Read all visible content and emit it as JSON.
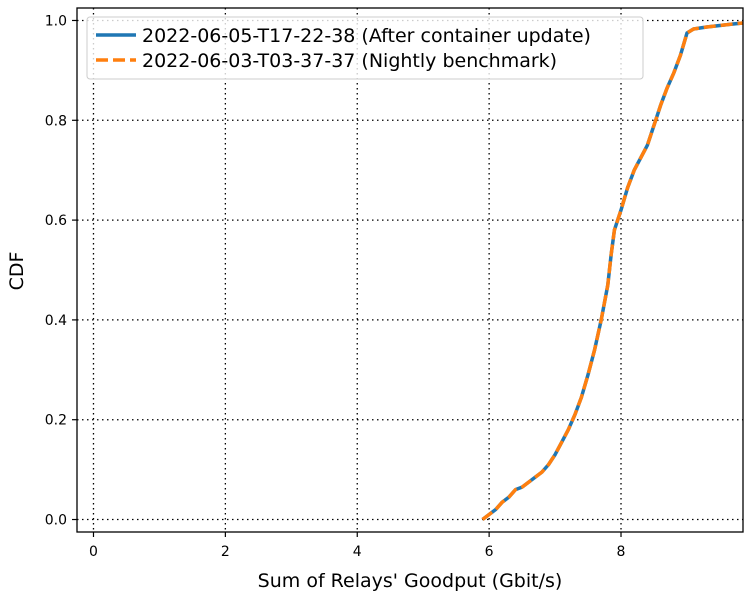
{
  "chart_data": {
    "type": "line",
    "title": "",
    "xlabel": "Sum of Relays' Goodput (Gbit/s)",
    "ylabel": "CDF",
    "xlim": [
      -0.25,
      9.85
    ],
    "ylim": [
      -0.025,
      1.025
    ],
    "xticks": [
      0,
      2,
      4,
      6,
      8
    ],
    "xtick_labels": [
      "0",
      "2",
      "4",
      "6",
      "8"
    ],
    "yticks": [
      0.0,
      0.2,
      0.4,
      0.6,
      0.8,
      1.0
    ],
    "ytick_labels": [
      "0.0",
      "0.2",
      "0.4",
      "0.6",
      "0.8",
      "1.0"
    ],
    "grid": true,
    "grid_style": "dotted",
    "legend_position": "top-left",
    "series": [
      {
        "name": "2022-06-05-T17-22-38 (After container update)",
        "color": "#1f77b4",
        "linestyle": "solid",
        "x": [
          5.9,
          6.0,
          6.1,
          6.2,
          6.3,
          6.4,
          6.5,
          6.6,
          6.7,
          6.8,
          6.9,
          7.0,
          7.1,
          7.2,
          7.3,
          7.4,
          7.5,
          7.6,
          7.7,
          7.8,
          7.85,
          7.9,
          7.95,
          8.0,
          8.1,
          8.2,
          8.3,
          8.4,
          8.5,
          8.6,
          8.7,
          8.8,
          8.9,
          9.0,
          9.1,
          9.3,
          9.5,
          9.7,
          9.85
        ],
        "y": [
          0.0,
          0.01,
          0.02,
          0.035,
          0.045,
          0.06,
          0.065,
          0.075,
          0.085,
          0.095,
          0.11,
          0.13,
          0.155,
          0.18,
          0.21,
          0.245,
          0.29,
          0.34,
          0.4,
          0.47,
          0.53,
          0.58,
          0.6,
          0.62,
          0.665,
          0.7,
          0.725,
          0.75,
          0.79,
          0.83,
          0.865,
          0.895,
          0.93,
          0.975,
          0.983,
          0.987,
          0.99,
          0.993,
          0.995
        ]
      },
      {
        "name": "2022-06-03-T03-37-37 (Nightly benchmark)",
        "color": "#ff7f0e",
        "linestyle": "dashed",
        "x": [
          5.9,
          6.0,
          6.1,
          6.2,
          6.3,
          6.4,
          6.5,
          6.6,
          6.7,
          6.8,
          6.9,
          7.0,
          7.1,
          7.2,
          7.3,
          7.4,
          7.5,
          7.6,
          7.7,
          7.8,
          7.85,
          7.9,
          7.95,
          8.0,
          8.1,
          8.2,
          8.3,
          8.4,
          8.5,
          8.6,
          8.7,
          8.8,
          8.9,
          9.0,
          9.1,
          9.3,
          9.5,
          9.7,
          9.85
        ],
        "y": [
          0.0,
          0.01,
          0.02,
          0.035,
          0.045,
          0.06,
          0.065,
          0.075,
          0.085,
          0.095,
          0.11,
          0.13,
          0.155,
          0.18,
          0.21,
          0.245,
          0.29,
          0.34,
          0.4,
          0.47,
          0.53,
          0.58,
          0.6,
          0.62,
          0.665,
          0.7,
          0.725,
          0.75,
          0.79,
          0.83,
          0.865,
          0.895,
          0.93,
          0.975,
          0.983,
          0.987,
          0.99,
          0.993,
          0.995
        ]
      }
    ]
  }
}
